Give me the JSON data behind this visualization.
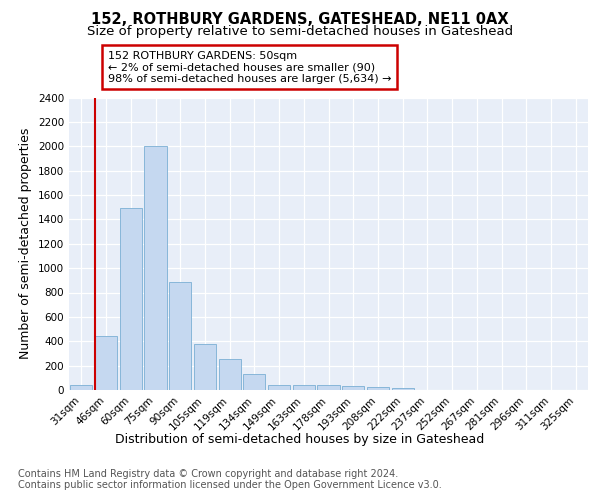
{
  "title": "152, ROTHBURY GARDENS, GATESHEAD, NE11 0AX",
  "subtitle": "Size of property relative to semi-detached houses in Gateshead",
  "xlabel": "Distribution of semi-detached houses by size in Gateshead",
  "ylabel": "Number of semi-detached properties",
  "categories": [
    "31sqm",
    "46sqm",
    "60sqm",
    "75sqm",
    "90sqm",
    "105sqm",
    "119sqm",
    "134sqm",
    "149sqm",
    "163sqm",
    "178sqm",
    "193sqm",
    "208sqm",
    "222sqm",
    "237sqm",
    "252sqm",
    "267sqm",
    "281sqm",
    "296sqm",
    "311sqm",
    "325sqm"
  ],
  "values": [
    40,
    445,
    1490,
    2000,
    890,
    375,
    255,
    130,
    40,
    40,
    40,
    35,
    25,
    20,
    0,
    0,
    0,
    0,
    0,
    0,
    0
  ],
  "bar_color": "#c5d8f0",
  "bar_edge_color": "#7bafd4",
  "red_line_color": "#cc0000",
  "annotation_title": "152 ROTHBURY GARDENS: 50sqm",
  "annotation_line1": "← 2% of semi-detached houses are smaller (90)",
  "annotation_line2": "98% of semi-detached houses are larger (5,634) →",
  "annotation_box_color": "#cc0000",
  "ylim": [
    0,
    2400
  ],
  "yticks": [
    0,
    200,
    400,
    600,
    800,
    1000,
    1200,
    1400,
    1600,
    1800,
    2000,
    2200,
    2400
  ],
  "footer1": "Contains HM Land Registry data © Crown copyright and database right 2024.",
  "footer2": "Contains public sector information licensed under the Open Government Licence v3.0.",
  "background_color": "#e8eef8",
  "title_fontsize": 10.5,
  "subtitle_fontsize": 9.5,
  "axis_label_fontsize": 9,
  "tick_fontsize": 7.5,
  "footer_fontsize": 7,
  "annot_fontsize": 8
}
